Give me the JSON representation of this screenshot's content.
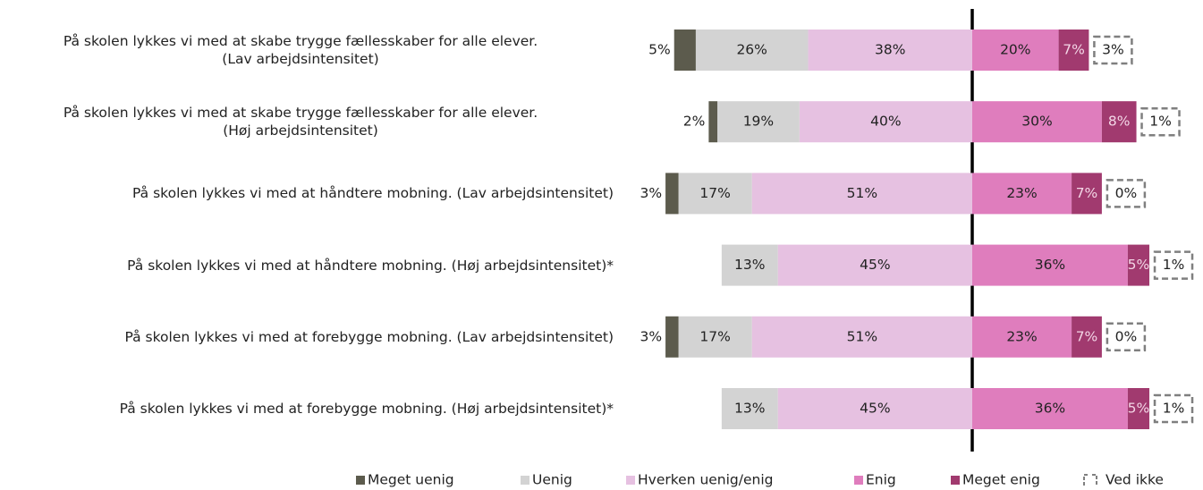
{
  "chart_data": {
    "type": "diverging-bar",
    "categories": [
      "På skolen lykkes vi med at skabe trygge fællesskaber for alle elever.\n(Lav arbejdsintensitet)",
      "På skolen lykkes vi med at skabe trygge fællesskaber for alle elever.\n(Høj arbejdsintensitet)",
      "På skolen lykkes vi med at håndtere mobning. (Lav arbejdsintensitet)",
      "På skolen lykkes vi med at håndtere mobning. (Høj arbejdsintensitet)*",
      "På skolen lykkes vi med at forebygge mobning. (Lav arbejdsintensitet)",
      "På skolen lykkes vi med at forebygge mobning. (Høj arbejdsintensitet)*"
    ],
    "series": [
      {
        "name": "Meget uenig",
        "color": "#5c5b4d",
        "values": [
          5,
          2,
          3,
          null,
          3,
          null
        ],
        "value_labels": [
          "5%",
          "2%",
          "3%",
          null,
          "3%",
          null
        ]
      },
      {
        "name": "Uenig",
        "color": "#d3d3d3",
        "values": [
          26,
          19,
          17,
          13,
          17,
          13
        ],
        "value_labels": [
          "26%",
          "19%",
          "17%",
          "13%",
          "17%",
          "13%"
        ]
      },
      {
        "name": "Hverken uenig/enig",
        "color": "#e6c1e1",
        "values": [
          38,
          40,
          51,
          45,
          51,
          45
        ],
        "value_labels": [
          "38%",
          "40%",
          "51%",
          "45%",
          "51%",
          "45%"
        ]
      },
      {
        "name": "Enig",
        "color": "#df7dbd",
        "values": [
          20,
          30,
          23,
          36,
          23,
          36
        ],
        "value_labels": [
          "20%",
          "30%",
          "23%",
          "36%",
          "23%",
          "36%"
        ]
      },
      {
        "name": "Meget enig",
        "color": "#a13a6f",
        "values": [
          7,
          8,
          7,
          5,
          7,
          5
        ],
        "value_labels": [
          "7%",
          "8%",
          "7%",
          "5%",
          "7%",
          "5%"
        ]
      },
      {
        "name": "Ved ikke",
        "color": "#7f7f7f",
        "values": [
          3,
          1,
          0,
          1,
          0,
          1
        ],
        "value_labels": [
          "3%",
          "1%",
          "0%",
          "1%",
          "0%",
          "1%"
        ]
      }
    ]
  }
}
